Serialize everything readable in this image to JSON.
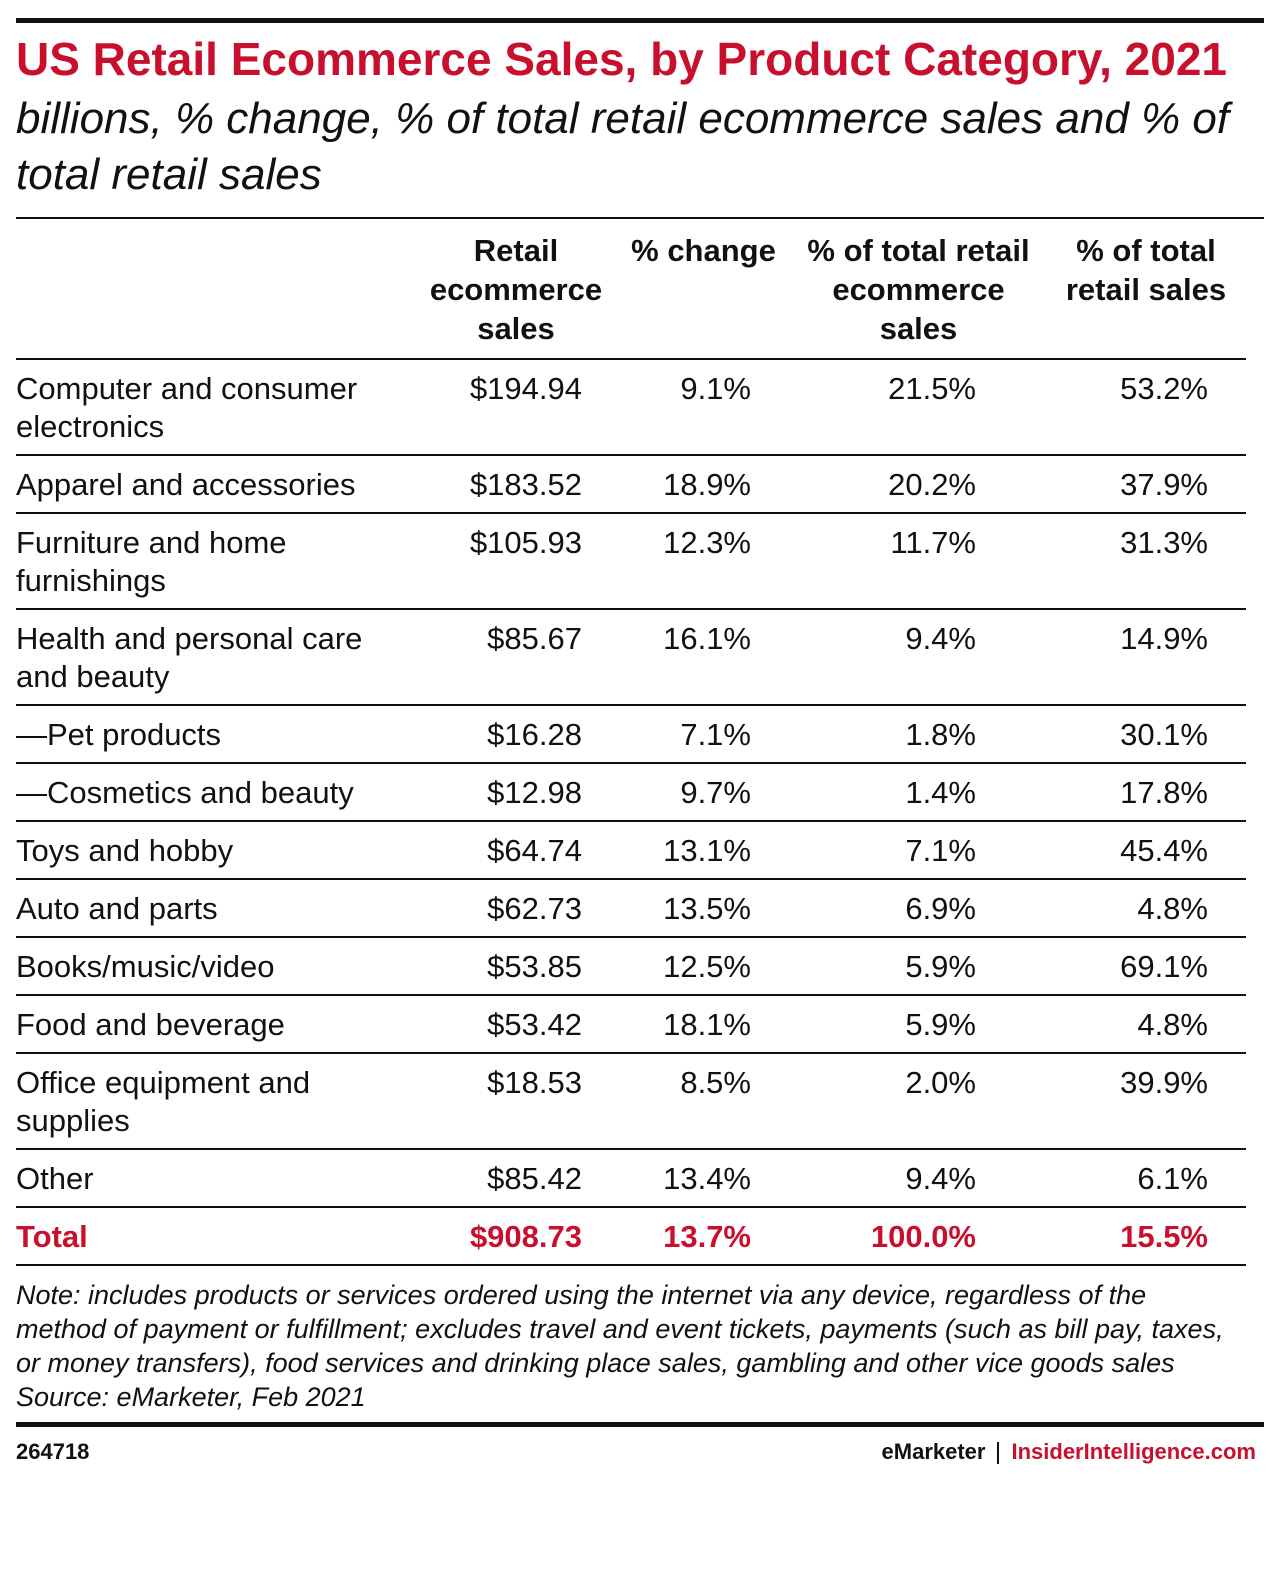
{
  "header": {
    "title": "US Retail Ecommerce Sales, by Product Category, 2021",
    "subtitle": "billions, % change, % of total retail ecommerce sales and % of total retail sales"
  },
  "table": {
    "columns": [
      "Retail ecommerce sales",
      "% change",
      "% of total retail ecommerce sales",
      "% of total retail sales"
    ],
    "rows": [
      {
        "label": "Computer and consumer electronics",
        "cells": [
          "$194.94",
          "9.1%",
          "21.5%",
          "53.2%"
        ]
      },
      {
        "label": "Apparel and accessories",
        "cells": [
          "$183.52",
          "18.9%",
          "20.2%",
          "37.9%"
        ]
      },
      {
        "label": "Furniture and home furnishings",
        "cells": [
          "$105.93",
          "12.3%",
          "11.7%",
          "31.3%"
        ]
      },
      {
        "label": "Health and personal care and beauty",
        "cells": [
          "$85.67",
          "16.1%",
          "9.4%",
          "14.9%"
        ]
      },
      {
        "label": "—Pet products",
        "cells": [
          "$16.28",
          "7.1%",
          "1.8%",
          "30.1%"
        ]
      },
      {
        "label": "—Cosmetics and beauty",
        "cells": [
          "$12.98",
          "9.7%",
          "1.4%",
          "17.8%"
        ]
      },
      {
        "label": "Toys and hobby",
        "cells": [
          "$64.74",
          "13.1%",
          "7.1%",
          "45.4%"
        ]
      },
      {
        "label": "Auto and parts",
        "cells": [
          "$62.73",
          "13.5%",
          "6.9%",
          "4.8%"
        ]
      },
      {
        "label": "Books/music/video",
        "cells": [
          "$53.85",
          "12.5%",
          "5.9%",
          "69.1%"
        ]
      },
      {
        "label": "Food and beverage",
        "cells": [
          "$53.42",
          "18.1%",
          "5.9%",
          "4.8%"
        ]
      },
      {
        "label": "Office equipment and supplies",
        "cells": [
          "$18.53",
          "8.5%",
          "2.0%",
          "39.9%"
        ]
      },
      {
        "label": "Other",
        "cells": [
          "$85.42",
          "13.4%",
          "9.4%",
          "6.1%"
        ]
      }
    ],
    "total": {
      "label": "Total",
      "cells": [
        "$908.73",
        "13.7%",
        "100.0%",
        "15.5%"
      ]
    }
  },
  "note": "Note: includes products or services ordered using the internet via any device, regardless of the method of payment or fulfillment; excludes travel and event tickets, payments (such as bill pay, taxes, or money transfers), food services and drinking place sales, gambling and other vice goods sales",
  "source": "Source: eMarketer, Feb 2021",
  "footer": {
    "id": "264718",
    "brand": "eMarketer",
    "site": "InsiderIntelligence.com"
  }
}
